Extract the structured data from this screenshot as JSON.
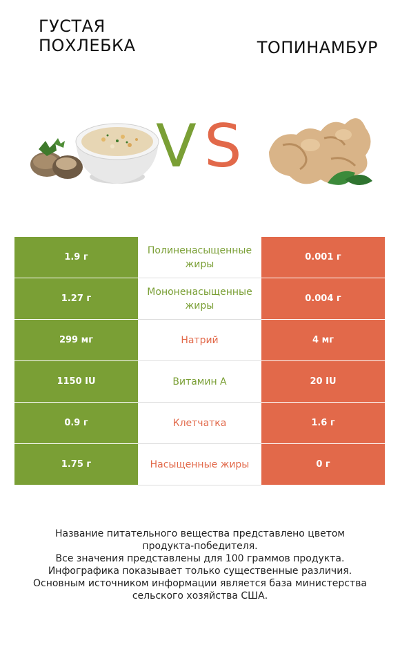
{
  "header": {
    "left_title_line1": "ГУСТАЯ",
    "left_title_line2": "ПОХЛЕБКА",
    "right_title": "ТОПИНАМБУР",
    "vs_v": "V",
    "vs_s": "S"
  },
  "colors": {
    "left": "#7a9f35",
    "right": "#e2694a"
  },
  "rows": [
    {
      "left": "1.9 г",
      "label": "Полиненасыщенные жиры",
      "right": "0.001 г",
      "winner": "left"
    },
    {
      "left": "1.27 г",
      "label": "Мононенасыщенные жиры",
      "right": "0.004 г",
      "winner": "left"
    },
    {
      "left": "299 мг",
      "label": "Натрий",
      "right": "4 мг",
      "winner": "right"
    },
    {
      "left": "1150 IU",
      "label": "Витамин A",
      "right": "20 IU",
      "winner": "left"
    },
    {
      "left": "0.9 г",
      "label": "Клетчатка",
      "right": "1.6 г",
      "winner": "right"
    },
    {
      "left": "1.75 г",
      "label": "Насыщенные жиры",
      "right": "0 г",
      "winner": "right"
    }
  ],
  "footer": {
    "line1": "Название питательного вещества представлено цветом",
    "line2": "продукта-победителя.",
    "line3": "Все значения представлены для 100 граммов продукта.",
    "line4": "Инфографика показывает только существенные различия.",
    "line5": "Основным источником информации является база министерства",
    "line6": "сельского хозяйства США."
  }
}
